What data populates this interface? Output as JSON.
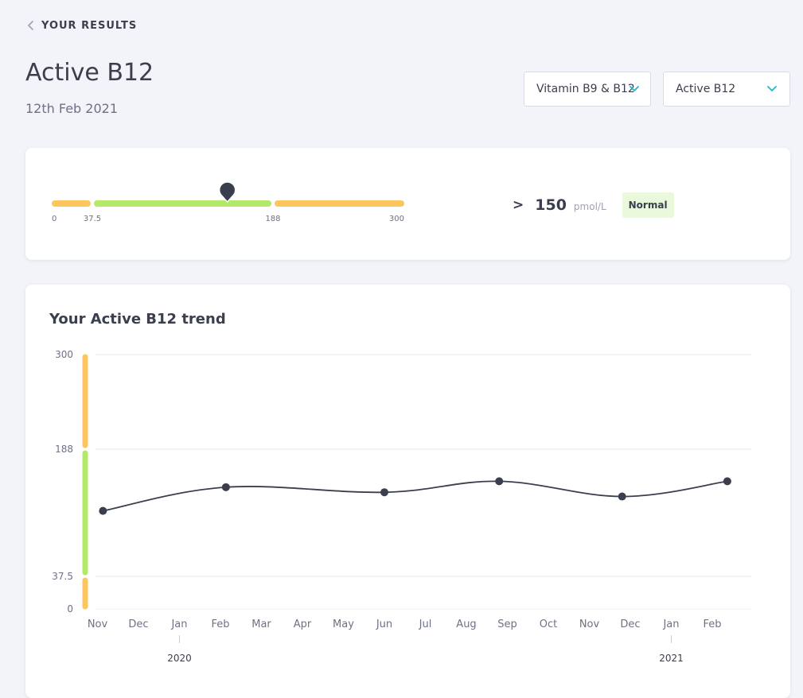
{
  "nav": {
    "back_label": "YOUR RESULTS"
  },
  "header": {
    "title": "Active B12",
    "date": "12th Feb 2021"
  },
  "selects": {
    "category": "Vitamin B9 & B12",
    "test": "Active B12"
  },
  "result": {
    "comparator": ">",
    "value": "150",
    "unit": "pmol/L",
    "status": "Normal",
    "marker_value": 150,
    "range_ticks": [
      "0",
      "37.5",
      "188",
      "300"
    ],
    "bands": [
      {
        "from": 0,
        "to": 37.5,
        "status": "out-of-range"
      },
      {
        "from": 37.5,
        "to": 188,
        "status": "normal"
      },
      {
        "from": 188,
        "to": 300,
        "status": "out-of-range"
      }
    ]
  },
  "colors": {
    "normal": "#b3e86a",
    "out_of_range": "#fcc55d",
    "line": "#3b3e4d",
    "badge_bg": "#eaf8dc",
    "accent": "#21b8c9"
  },
  "trend": {
    "title": "Your Active B12 trend"
  },
  "chart_data": {
    "type": "line",
    "title": "Your Active B12 trend",
    "xlabel": "",
    "ylabel": "",
    "ylim": [
      0,
      300
    ],
    "y_ticks": [
      0,
      37.5,
      188,
      300
    ],
    "x_months": [
      "Nov",
      "Dec",
      "Jan",
      "Feb",
      "Mar",
      "Apr",
      "May",
      "Jun",
      "Jul",
      "Aug",
      "Sep",
      "Oct",
      "Nov",
      "Dec",
      "Jan",
      "Feb"
    ],
    "x_years": [
      {
        "label": "2020",
        "month_index": 2
      },
      {
        "label": "2021",
        "month_index": 14
      }
    ],
    "grid": true,
    "series": [
      {
        "points": [
          {
            "x": "2019-11-05",
            "y": 115
          },
          {
            "x": "2020-02-05",
            "y": 143
          },
          {
            "x": "2020-06-01",
            "y": 137
          },
          {
            "x": "2020-08-25",
            "y": 150
          },
          {
            "x": "2020-11-25",
            "y": 132
          },
          {
            "x": "2021-02-12",
            "y": 150
          }
        ]
      }
    ]
  }
}
